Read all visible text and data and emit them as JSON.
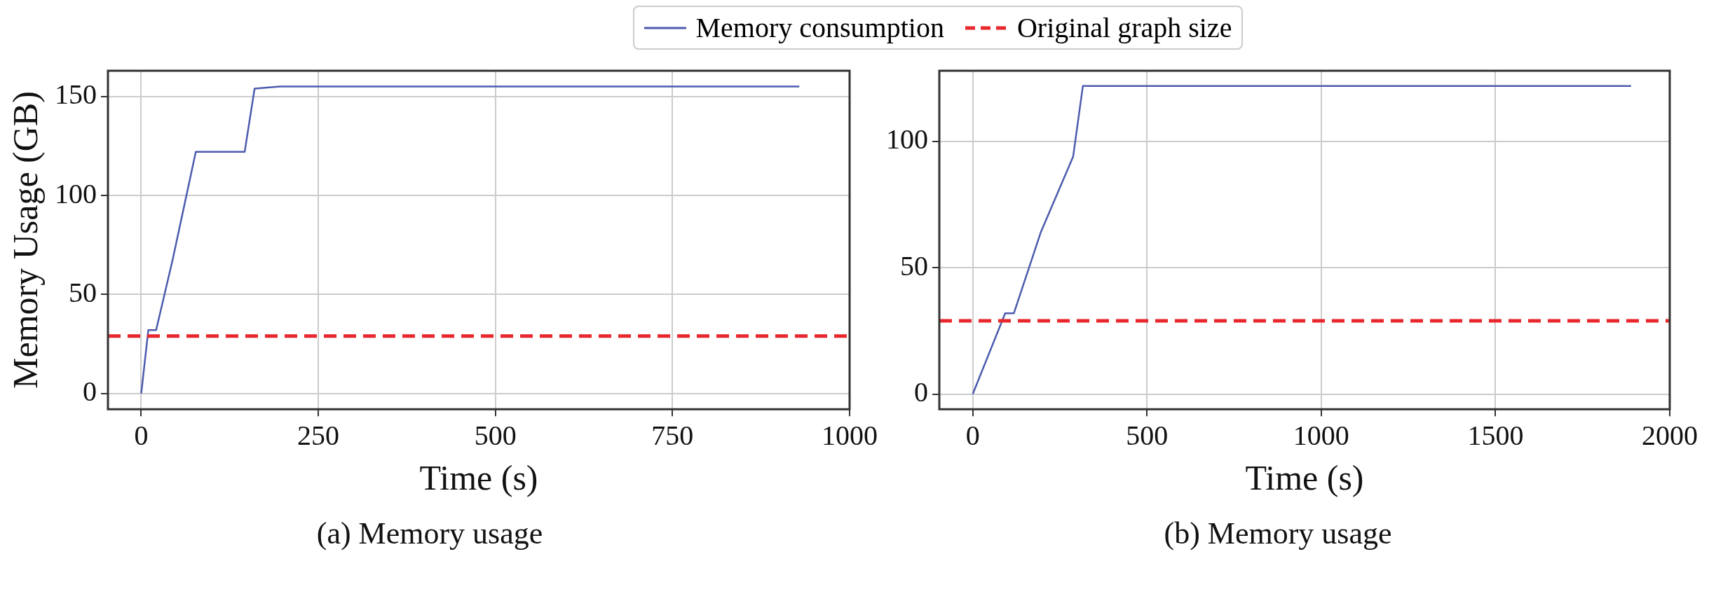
{
  "chart_data": [
    {
      "type": "line",
      "title": "(a) Memory usage",
      "xlabel": "Time (s)",
      "ylabel": "Memory Usage (GB)",
      "xlim": [
        -47,
        1000
      ],
      "xticks": [
        0,
        250,
        500,
        750,
        1000
      ],
      "ylim": [
        -8,
        163
      ],
      "yticks": [
        0,
        50,
        100,
        150
      ],
      "grid": true,
      "legend": "top",
      "series": [
        {
          "name": "Memory consumption",
          "color": "#4c5bad",
          "x": [
            0,
            10,
            21,
            44,
            77,
            146,
            160,
            196,
            929
          ],
          "values": [
            0,
            32,
            32,
            67,
            122,
            122,
            154,
            155,
            155
          ]
        }
      ],
      "ref_lines": [
        {
          "axis": "y",
          "value": 29,
          "label": "Original graph size",
          "color": "#e8262b",
          "line_style": "dashed"
        }
      ]
    },
    {
      "type": "line",
      "title": "(b) Memory usage",
      "xlabel": "Time (s)",
      "xlim": [
        -96,
        2000
      ],
      "xticks": [
        0,
        500,
        1000,
        1500,
        2000
      ],
      "ylim": [
        -6,
        128
      ],
      "yticks": [
        0,
        50,
        100
      ],
      "grid": true,
      "series": [
        {
          "color": "#4c5bad",
          "x": [
            0,
            93,
            118,
            195,
            288,
            316,
            1889
          ],
          "values": [
            0,
            32,
            32,
            64,
            94,
            122,
            122
          ]
        }
      ],
      "ref_lines": [
        {
          "axis": "y",
          "value": 29,
          "color": "#e8262b",
          "line_style": "dashed"
        }
      ]
    }
  ]
}
